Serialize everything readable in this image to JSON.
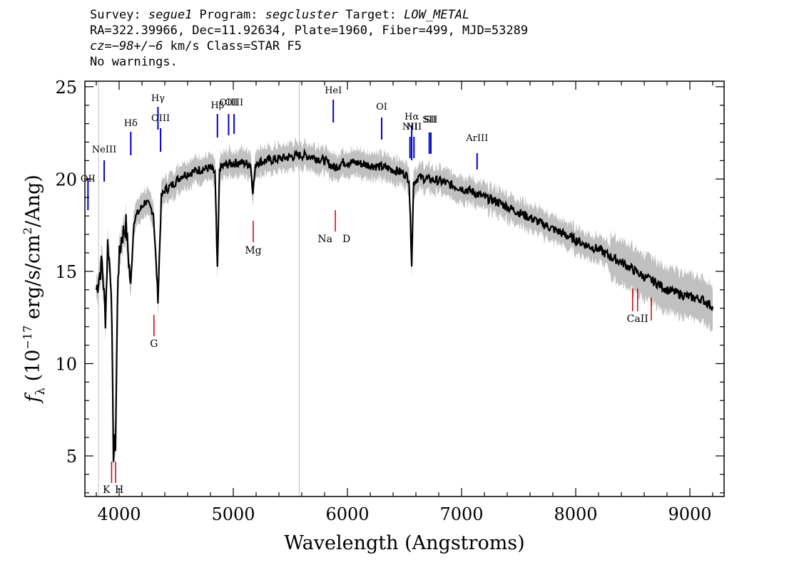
{
  "header": {
    "line1": {
      "survey_label": "Survey: ",
      "survey": "segue1",
      "program_label": " Program: ",
      "program": "segcluster",
      "target_label": " Target: ",
      "target": "LOW_METAL"
    },
    "line2": "RA=322.39966, Dec=11.92634, Plate=1960, Fiber=499, MJD=53289",
    "line3": {
      "cz_label": "cz",
      "cz_value": "=−98+/−6",
      "cz_rest": " km/s Class=STAR F5"
    },
    "line4": "No warnings."
  },
  "colors": {
    "flux": "#000000",
    "error_band": "#c0c0c0",
    "emission": "#0000cc",
    "absorption": "#cc0000",
    "frame": "#000000"
  },
  "chart_data": {
    "type": "line",
    "title": "",
    "xlabel": "Wavelength (Angstroms)",
    "ylabel": "fλ (10⁻¹⁷ erg/s/cm²/Ang)",
    "xlim": [
      3700,
      9300
    ],
    "ylim": [
      2.8,
      25.3
    ],
    "xticks": [
      4000,
      5000,
      6000,
      7000,
      8000,
      9000
    ],
    "yticks": [
      5,
      10,
      15,
      20,
      25
    ],
    "grid": false,
    "series": [
      {
        "name": "",
        "x": [
          3800,
          3850,
          3880,
          3900,
          3930,
          3950,
          3968,
          3990,
          4020,
          4060,
          4101,
          4130,
          4180,
          4230,
          4300,
          4340,
          4370,
          4400,
          4450,
          4500,
          4550,
          4600,
          4700,
          4800,
          4840,
          4861,
          4880,
          4950,
          5050,
          5150,
          5172,
          5200,
          5300,
          5400,
          5500,
          5600,
          5700,
          5800,
          5893,
          5950,
          6050,
          6150,
          6250,
          6350,
          6450,
          6500,
          6540,
          6563,
          6580,
          6620,
          6700,
          6800,
          6900,
          7000,
          7100,
          7200,
          7300,
          7400,
          7500,
          7600,
          7700,
          7800,
          7900,
          8000,
          8100,
          8200,
          8300,
          8400,
          8500,
          8600,
          8700,
          8800,
          8900,
          9000,
          9100,
          9200
        ],
        "values": [
          14.0,
          15.5,
          12.5,
          16.5,
          14.5,
          5.2,
          5.7,
          15.0,
          16.8,
          17.5,
          14.2,
          17.8,
          18.3,
          18.8,
          18.2,
          13.5,
          19.0,
          19.4,
          19.6,
          19.9,
          20.2,
          20.3,
          20.5,
          20.6,
          20.3,
          15.0,
          20.6,
          20.8,
          20.9,
          20.8,
          19.4,
          20.9,
          21.0,
          21.1,
          21.2,
          21.3,
          21.2,
          21.0,
          20.6,
          20.9,
          20.9,
          20.8,
          20.7,
          20.6,
          20.4,
          20.3,
          20.0,
          15.5,
          19.8,
          20.1,
          20.0,
          19.9,
          19.7,
          19.5,
          19.3,
          19.0,
          18.8,
          18.5,
          18.2,
          17.9,
          17.6,
          17.3,
          17.0,
          16.7,
          16.4,
          16.2,
          15.8,
          15.5,
          15.1,
          14.7,
          14.4,
          14.0,
          13.8,
          13.6,
          13.5,
          13.1
        ]
      }
    ],
    "reference_lines": [
      3820,
      5578
    ],
    "emission_lines": [
      {
        "label": "OII",
        "wavelength": 3727
      },
      {
        "label": "NeIII",
        "wavelength": 3869
      },
      {
        "label": "Hδ",
        "wavelength": 4102
      },
      {
        "label": "Hγ",
        "wavelength": 4340
      },
      {
        "label": "OIII",
        "wavelength": 4363
      },
      {
        "label": "Hβ",
        "wavelength": 4861
      },
      {
        "label": "OIII",
        "wavelength": 4959
      },
      {
        "label": "OIII",
        "wavelength": 5007
      },
      {
        "label": "HeI",
        "wavelength": 5876
      },
      {
        "label": "OI",
        "wavelength": 6300
      },
      {
        "label": "NII",
        "wavelength": 6548
      },
      {
        "label": "Hα",
        "wavelength": 6563
      },
      {
        "label": "NII",
        "wavelength": 6583
      },
      {
        "label": "SII",
        "wavelength": 6717
      },
      {
        "label": "SII",
        "wavelength": 6731
      },
      {
        "label": "ArIII",
        "wavelength": 7136
      }
    ],
    "absorption_lines": [
      {
        "label": "K",
        "wavelength": 3934
      },
      {
        "label": "H",
        "wavelength": 3969
      },
      {
        "label": "G",
        "wavelength": 4305
      },
      {
        "label": "Mg",
        "wavelength": 5175
      },
      {
        "label": "Na",
        "wavelength": 5894
      },
      {
        "label": "D",
        "wavelength": 5894
      },
      {
        "label": "CaII",
        "wavelength": 8498
      },
      {
        "label": "CaII",
        "wavelength": 8542
      },
      {
        "label": "CaII",
        "wavelength": 8662
      }
    ]
  }
}
